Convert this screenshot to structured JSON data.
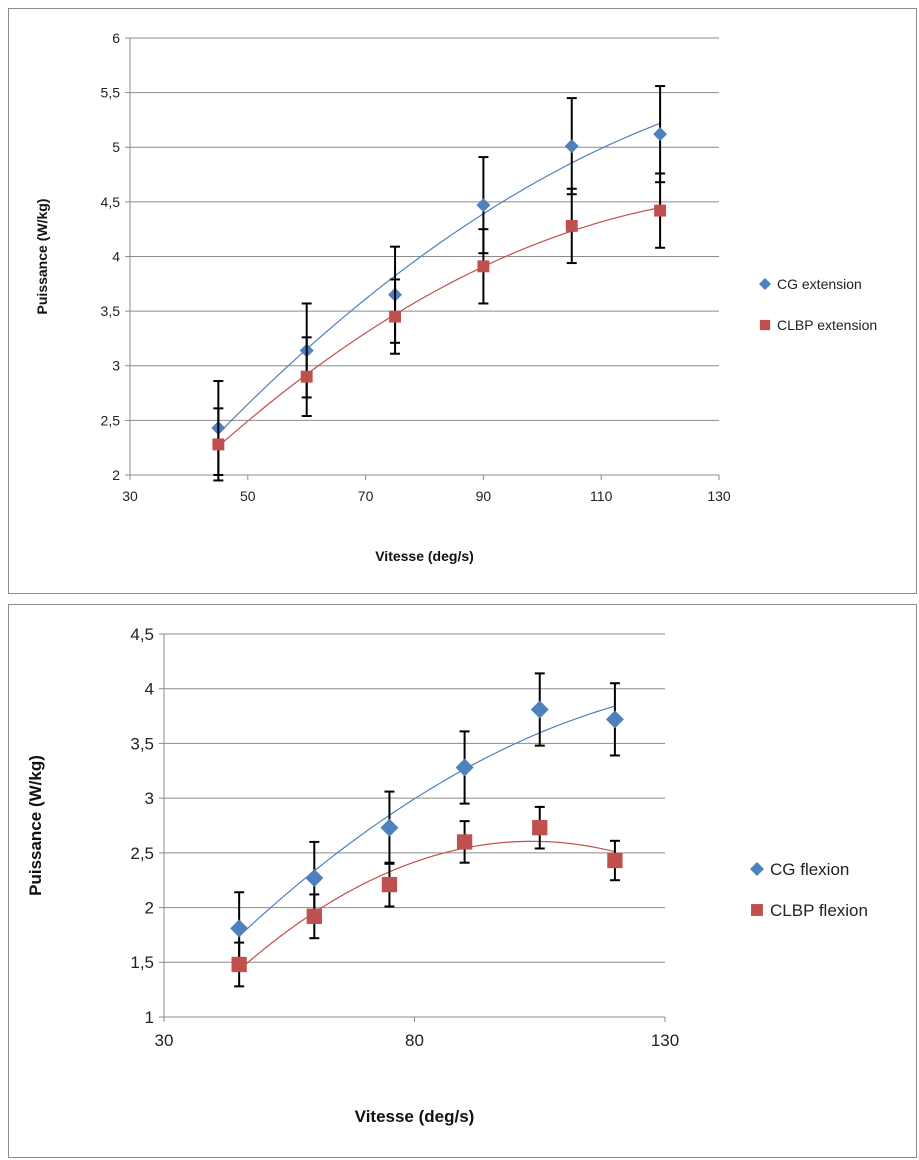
{
  "chart_data": [
    {
      "type": "scatter",
      "title": "",
      "xlabel": "Vitesse (deg/s)",
      "ylabel": "Puissance  (W/kg)",
      "xlim": [
        30,
        130
      ],
      "ylim": [
        2,
        6
      ],
      "x_ticks": [
        "30",
        "50",
        "70",
        "90",
        "110",
        "130"
      ],
      "y_ticks": [
        "2",
        "2,5",
        "3",
        "3,5",
        "4",
        "4,5",
        "5",
        "5,5",
        "6"
      ],
      "grid": true,
      "legend_position": "right",
      "series": [
        {
          "name": "CG extension",
          "marker": "diamond",
          "color": "#4f81bd",
          "x": [
            45,
            60,
            75,
            90,
            105,
            120
          ],
          "y": [
            2.43,
            3.14,
            3.65,
            4.47,
            5.01,
            5.12
          ],
          "error": [
            0.43,
            0.43,
            0.44,
            0.44,
            0.44,
            0.44
          ],
          "trendline": "polynomial"
        },
        {
          "name": "CLBP extension",
          "marker": "square",
          "color": "#c0504d",
          "x": [
            45,
            60,
            75,
            90,
            105,
            120
          ],
          "y": [
            2.28,
            2.9,
            3.45,
            3.91,
            4.28,
            4.42
          ],
          "error": [
            0.33,
            0.36,
            0.34,
            0.34,
            0.34,
            0.34
          ],
          "trendline": "polynomial"
        }
      ]
    },
    {
      "type": "scatter",
      "title": "",
      "xlabel": "Vitesse (deg/s)",
      "ylabel": "Puissance  (W/kg)",
      "xlim": [
        30,
        130
      ],
      "ylim": [
        1,
        4.5
      ],
      "x_ticks": [
        "30",
        "80",
        "130"
      ],
      "y_ticks": [
        "1",
        "1,5",
        "2",
        "2,5",
        "3",
        "3,5",
        "4",
        "4,5"
      ],
      "grid": true,
      "legend_position": "right",
      "series": [
        {
          "name": "CG flexion",
          "marker": "diamond",
          "color": "#4f81bd",
          "x": [
            45,
            60,
            75,
            90,
            105,
            120
          ],
          "y": [
            1.81,
            2.27,
            2.73,
            3.28,
            3.81,
            3.72
          ],
          "error": [
            0.33,
            0.33,
            0.33,
            0.33,
            0.33,
            0.33
          ],
          "trendline": "polynomial"
        },
        {
          "name": "CLBP flexion",
          "marker": "square",
          "color": "#c0504d",
          "x": [
            45,
            60,
            75,
            90,
            105,
            120
          ],
          "y": [
            1.48,
            1.92,
            2.21,
            2.6,
            2.73,
            2.43
          ],
          "error": [
            0.2,
            0.2,
            0.2,
            0.19,
            0.19,
            0.18
          ],
          "trendline": "polynomial"
        }
      ]
    }
  ]
}
